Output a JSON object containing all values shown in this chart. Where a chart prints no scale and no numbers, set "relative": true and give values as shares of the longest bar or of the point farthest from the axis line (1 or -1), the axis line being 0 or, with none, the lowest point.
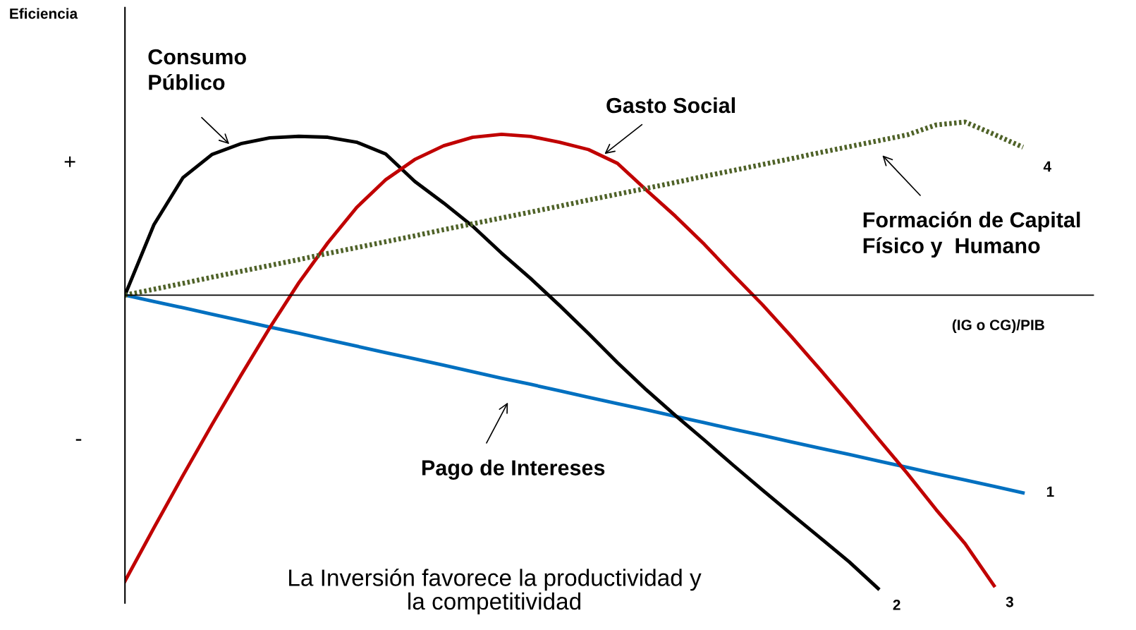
{
  "chart_data": {
    "type": "line",
    "relative": true,
    "xlabel": "(IG o CG)/PIB",
    "legend": false,
    "marker": "none",
    "categories": [
      null,
      null,
      null,
      null,
      null,
      null,
      null,
      null,
      null,
      null,
      null,
      null,
      null,
      null,
      null,
      null,
      null,
      null,
      null,
      null,
      null,
      null,
      null,
      null,
      null,
      null,
      null,
      null,
      null,
      null,
      null,
      null,
      null,
      null
    ],
    "series": [
      {
        "name": "1",
        "color": "#0070c0",
        "line_style": "solid",
        "values": [
          0,
          -0.022,
          -0.043,
          -0.065,
          -0.087,
          -0.109,
          -0.13,
          -0.152,
          -0.174,
          -0.196,
          -0.217,
          -0.239,
          -0.261,
          -0.283,
          -0.304,
          -0.326,
          -0.348,
          -0.37,
          -0.391,
          -0.413,
          -0.435,
          -0.457,
          -0.478,
          -0.5,
          -0.522,
          -0.543,
          -0.565,
          -0.587,
          -0.609,
          -0.63,
          -0.652,
          -0.674,
          null,
          null
        ]
      },
      {
        "name": "2",
        "color": "#000000",
        "line_style": "solid",
        "values": [
          0,
          0.24,
          0.4,
          0.479,
          0.516,
          0.536,
          0.541,
          0.538,
          0.521,
          0.481,
          0.388,
          0.314,
          0.235,
          0.143,
          0.057,
          -0.035,
          -0.131,
          -0.23,
          -0.323,
          -0.41,
          -0.494,
          -0.58,
          -0.664,
          -0.746,
          -0.827,
          -0.909,
          -1,
          null,
          null,
          null,
          null,
          null,
          null,
          null
        ]
      },
      {
        "name": "3",
        "color": "#c00000",
        "line_style": "solid",
        "values": [
          -0.975,
          -0.793,
          -0.615,
          -0.442,
          -0.274,
          -0.111,
          0.042,
          0.178,
          0.299,
          0.393,
          0.462,
          0.509,
          0.538,
          0.548,
          0.541,
          0.521,
          0.496,
          0.449,
          0.358,
          0.269,
          0.173,
          0.069,
          -0.032,
          -0.141,
          -0.254,
          -0.37,
          -0.489,
          -0.607,
          -0.731,
          -0.847,
          -0.99,
          null,
          null,
          null
        ]
      },
      {
        "name": "4",
        "color": "#4f6228",
        "line_style": "dotted",
        "values": [
          0,
          0.02,
          0.04,
          0.061,
          0.081,
          0.101,
          0.121,
          0.142,
          0.162,
          0.182,
          0.202,
          0.223,
          0.243,
          0.263,
          0.283,
          0.303,
          0.324,
          0.344,
          0.364,
          0.384,
          0.405,
          0.425,
          0.445,
          0.465,
          0.486,
          0.506,
          0.526,
          0.546,
          0.58,
          0.59,
          0.548,
          0.504,
          null,
          null
        ]
      }
    ],
    "annotations": [
      "Consumo\nPúblico",
      "Gasto Social",
      "Formación de Capital\nFísico y  Humano",
      "Pago de Intereses",
      "+",
      "-",
      "La Inversión favorece la productividad y\nla competitividad",
      "Eficiencia"
    ]
  }
}
